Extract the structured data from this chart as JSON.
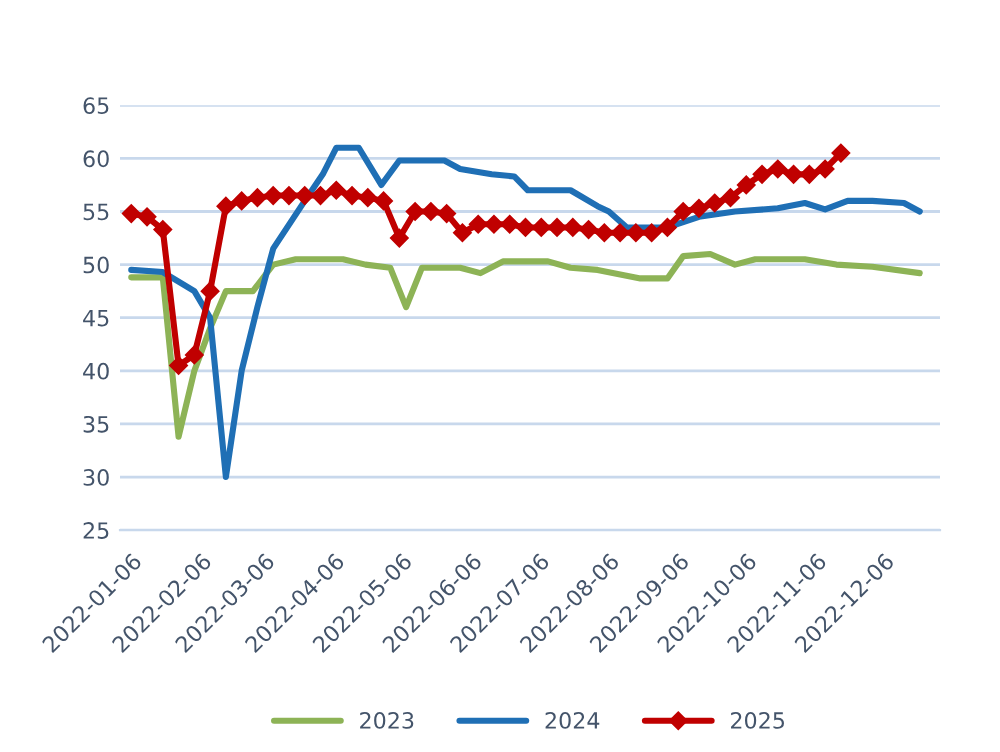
{
  "chart_data": {
    "type": "line",
    "xlim": [
      "2022-01-01",
      "2022-12-31"
    ],
    "xticks": [
      "2022-01-06",
      "2022-02-06",
      "2022-03-06",
      "2022-04-06",
      "2022-05-06",
      "2022-06-06",
      "2022-07-06",
      "2022-08-06",
      "2022-09-06",
      "2022-10-06",
      "2022-11-06",
      "2022-12-06"
    ],
    "ylim": [
      25,
      65
    ],
    "yticks": [
      25,
      30,
      35,
      40,
      45,
      50,
      55,
      60,
      65
    ],
    "grid": "y",
    "legend": "bottom",
    "series": [
      {
        "name": "2023",
        "color": "#8db356",
        "marker": "none",
        "x": [
          "2022-01-06",
          "2022-01-20",
          "2022-01-27",
          "2022-02-03",
          "2022-02-10",
          "2022-02-17",
          "2022-03-01",
          "2022-03-10",
          "2022-03-20",
          "2022-04-10",
          "2022-04-20",
          "2022-05-01",
          "2022-05-08",
          "2022-05-15",
          "2022-06-01",
          "2022-06-10",
          "2022-06-20",
          "2022-07-10",
          "2022-07-20",
          "2022-08-01",
          "2022-08-20",
          "2022-09-01",
          "2022-09-08",
          "2022-09-20",
          "2022-10-01",
          "2022-10-10",
          "2022-11-01",
          "2022-11-15",
          "2022-12-01",
          "2022-12-22"
        ],
        "values": [
          48.8,
          48.8,
          33.8,
          40,
          44,
          47.5,
          47.5,
          50,
          50.5,
          50.5,
          50,
          49.7,
          46,
          49.7,
          49.7,
          49.2,
          50.3,
          50.3,
          49.7,
          49.5,
          48.7,
          48.7,
          50.8,
          51,
          50,
          50.5,
          50.5,
          50,
          49.8,
          49.2
        ]
      },
      {
        "name": "2024",
        "color": "#1f6fb5",
        "marker": "none",
        "x": [
          "2022-01-06",
          "2022-01-20",
          "2022-02-03",
          "2022-02-10",
          "2022-02-17",
          "2022-02-24",
          "2022-03-03",
          "2022-03-10",
          "2022-03-24",
          "2022-04-01",
          "2022-04-07",
          "2022-04-17",
          "2022-04-27",
          "2022-05-05",
          "2022-05-25",
          "2022-06-01",
          "2022-06-15",
          "2022-06-25",
          "2022-07-01",
          "2022-07-20",
          "2022-08-01",
          "2022-08-06",
          "2022-08-14",
          "2022-09-01",
          "2022-09-15",
          "2022-10-01",
          "2022-10-20",
          "2022-11-01",
          "2022-11-10",
          "2022-11-20",
          "2022-12-01",
          "2022-12-15",
          "2022-12-22"
        ],
        "values": [
          49.5,
          49.3,
          47.5,
          45,
          30,
          40,
          46,
          51.5,
          56,
          58.5,
          61,
          61,
          57.5,
          59.8,
          59.8,
          59,
          58.5,
          58.3,
          57,
          57,
          55.5,
          55,
          53.5,
          53.5,
          54.5,
          55,
          55.3,
          55.8,
          55.2,
          56,
          56,
          55.8,
          55
        ]
      },
      {
        "name": "2025",
        "color": "#c00000",
        "marker": "diamond",
        "x": [
          "2022-01-06",
          "2022-01-13",
          "2022-01-20",
          "2022-01-27",
          "2022-02-03",
          "2022-02-10",
          "2022-02-17",
          "2022-02-24",
          "2022-03-03",
          "2022-03-10",
          "2022-03-17",
          "2022-03-24",
          "2022-03-31",
          "2022-04-07",
          "2022-04-14",
          "2022-04-21",
          "2022-04-28",
          "2022-05-05",
          "2022-05-12",
          "2022-05-19",
          "2022-05-26",
          "2022-06-02",
          "2022-06-09",
          "2022-06-16",
          "2022-06-23",
          "2022-06-30",
          "2022-07-07",
          "2022-07-14",
          "2022-07-21",
          "2022-07-28",
          "2022-08-04",
          "2022-08-11",
          "2022-08-18",
          "2022-08-25",
          "2022-09-01",
          "2022-09-08",
          "2022-09-15",
          "2022-09-22",
          "2022-09-29",
          "2022-10-06",
          "2022-10-13",
          "2022-10-20",
          "2022-10-27",
          "2022-11-03",
          "2022-11-10",
          "2022-11-17"
        ],
        "values": [
          54.8,
          54.5,
          53.3,
          40.5,
          41.5,
          47.5,
          55.5,
          56,
          56.3,
          56.5,
          56.5,
          56.5,
          56.5,
          57,
          56.5,
          56.3,
          56,
          52.5,
          55,
          55,
          54.8,
          53,
          53.8,
          53.8,
          53.8,
          53.5,
          53.5,
          53.5,
          53.5,
          53.3,
          53,
          53,
          53,
          53,
          53.5,
          55,
          55.3,
          55.8,
          56.3,
          57.5,
          58.5,
          59,
          58.5,
          58.5,
          59,
          60.5
        ]
      }
    ]
  }
}
